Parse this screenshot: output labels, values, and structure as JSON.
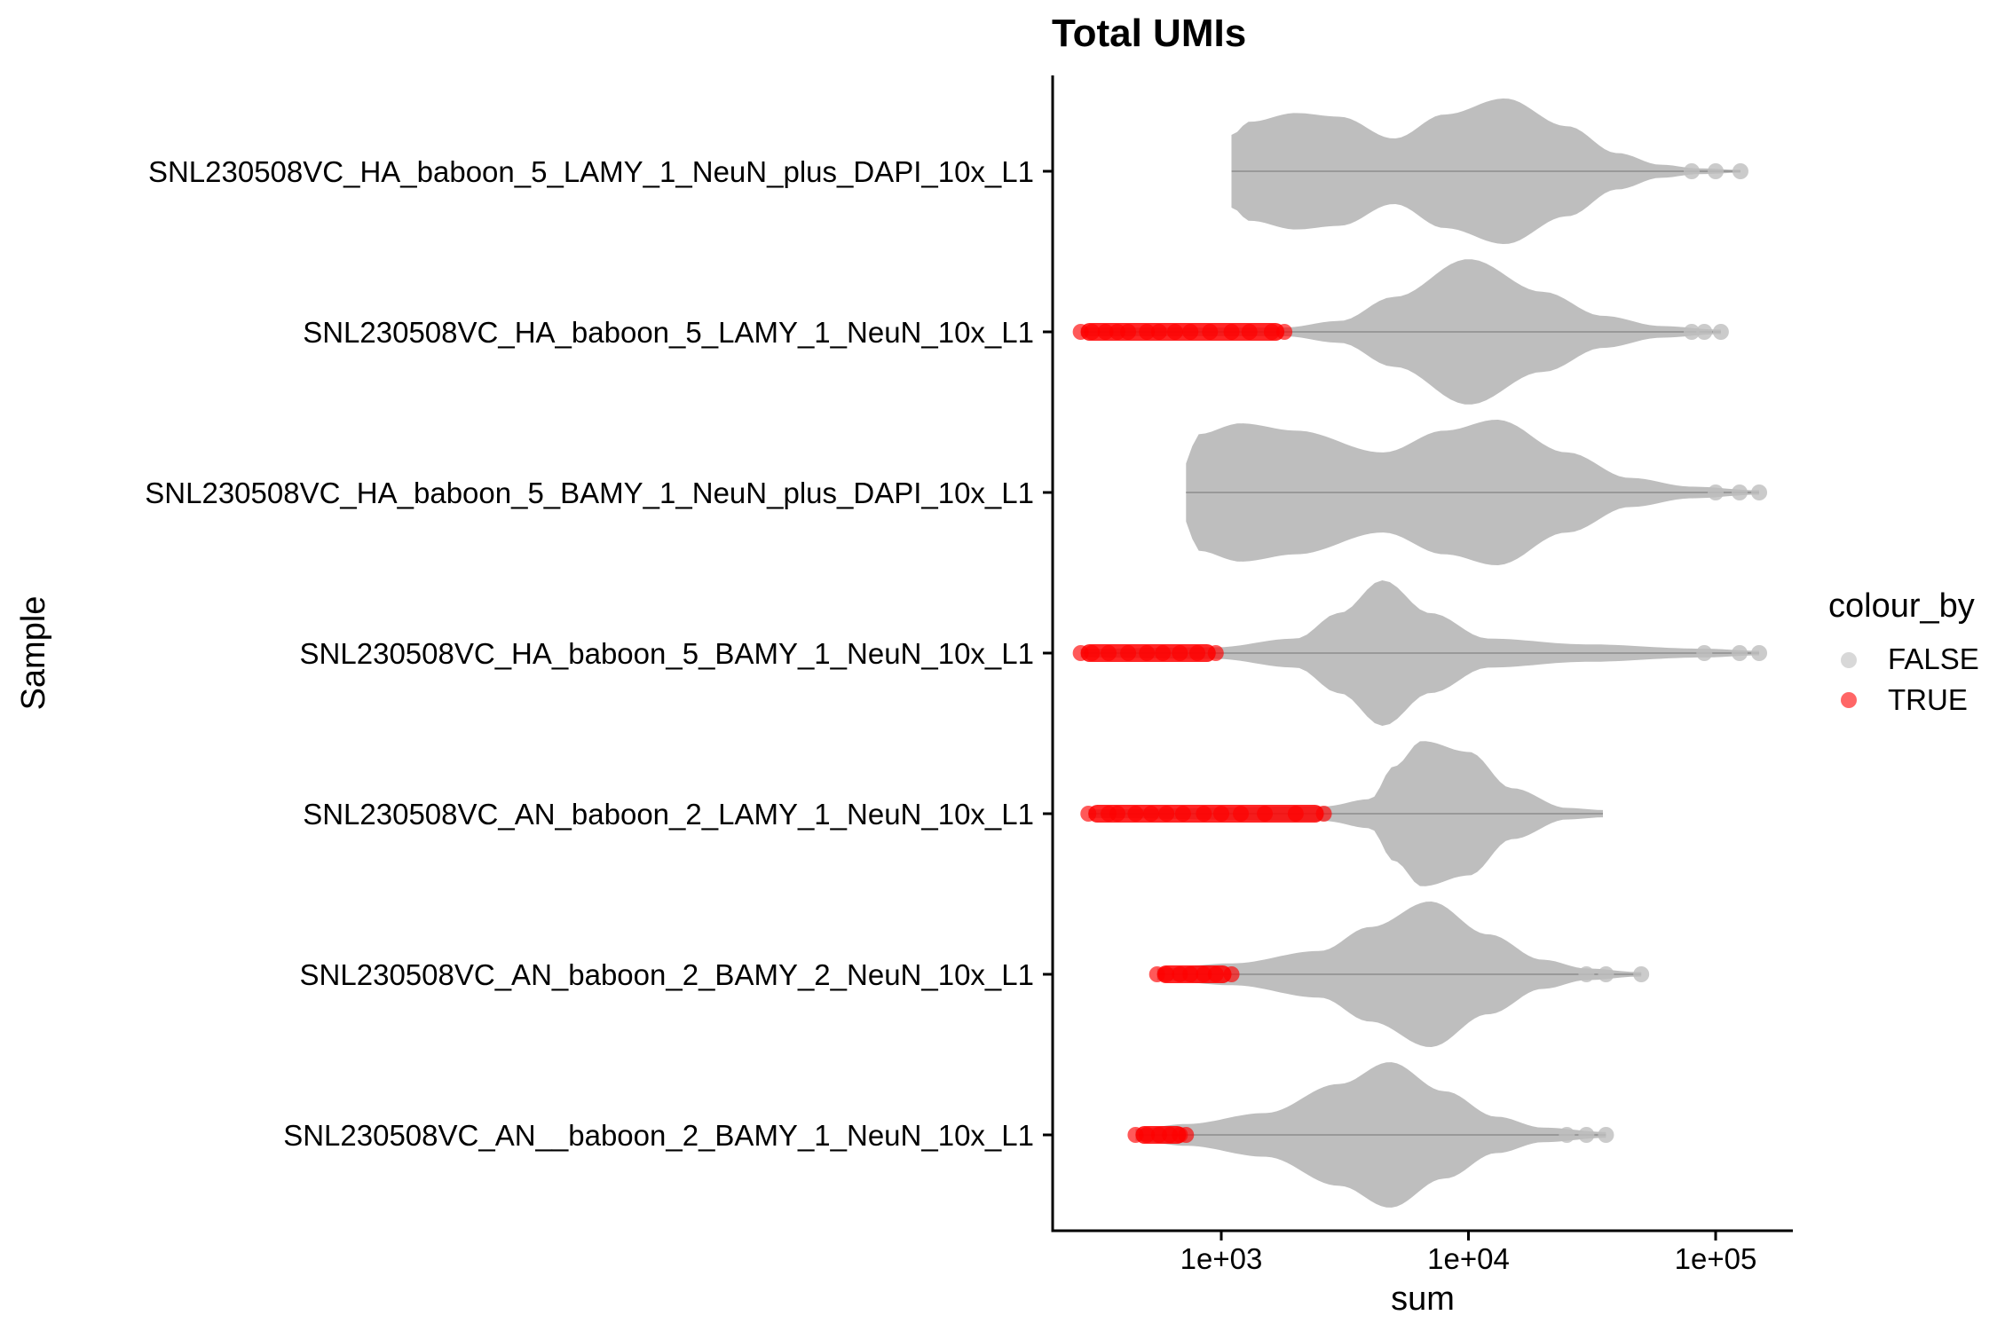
{
  "chart_data": {
    "type": "violin",
    "title": "Total UMIs",
    "xlabel": "sum",
    "ylabel": "Sample",
    "x_scale": "log10",
    "xlim": [
      200,
      200000
    ],
    "x_ticks": [
      1000,
      10000,
      100000
    ],
    "x_tick_labels": [
      "1e+03",
      "1e+04",
      "1e+05"
    ],
    "grid": false,
    "legend": {
      "title": "colour_by",
      "position": "right",
      "entries": [
        {
          "label": "FALSE",
          "color": "#bebebe"
        },
        {
          "label": "TRUE",
          "color": "#ff0000"
        }
      ]
    },
    "series": [
      {
        "sample": "SNL230508VC_HA_baboon_5_LAMY_1_NeuN_plus_DAPI_10x_L1",
        "min": 1100,
        "max": 126000,
        "outliers": [
          80000,
          100000,
          126000
        ],
        "true_min": null,
        "true_max": null,
        "true_points": [],
        "density": [
          [
            1100,
            0.5
          ],
          [
            1300,
            0.68
          ],
          [
            2000,
            0.8
          ],
          [
            3000,
            0.75
          ],
          [
            5000,
            0.45
          ],
          [
            8000,
            0.78
          ],
          [
            14000,
            1.0
          ],
          [
            25000,
            0.62
          ],
          [
            40000,
            0.25
          ],
          [
            60000,
            0.09
          ],
          [
            85000,
            0.04
          ],
          [
            126000,
            0.02
          ]
        ]
      },
      {
        "sample": "SNL230508VC_HA_baboon_5_LAMY_1_NeuN_10x_L1",
        "min": 270,
        "max": 105000,
        "outliers": [
          80000,
          90000,
          105000
        ],
        "true_min": 270,
        "true_max": 1800,
        "true_points": [
          270,
          300,
          340,
          380,
          420,
          500,
          560,
          650,
          750,
          900,
          1100,
          1300,
          1600,
          1800
        ],
        "density": [
          [
            270,
            0.06
          ],
          [
            1800,
            0.06
          ],
          [
            3000,
            0.15
          ],
          [
            5000,
            0.48
          ],
          [
            10000,
            1.0
          ],
          [
            20000,
            0.55
          ],
          [
            35000,
            0.22
          ],
          [
            60000,
            0.08
          ],
          [
            105000,
            0.03
          ]
        ]
      },
      {
        "sample": "SNL230508VC_HA_baboon_5_BAMY_1_NeuN_plus_DAPI_10x_L1",
        "min": 720,
        "max": 150000,
        "outliers": [
          100000,
          125000,
          150000
        ],
        "true_min": null,
        "true_max": null,
        "true_points": [],
        "density": [
          [
            720,
            0.4
          ],
          [
            800,
            0.8
          ],
          [
            1200,
            0.95
          ],
          [
            2000,
            0.85
          ],
          [
            4500,
            0.55
          ],
          [
            8000,
            0.85
          ],
          [
            13000,
            1.0
          ],
          [
            25000,
            0.55
          ],
          [
            45000,
            0.2
          ],
          [
            80000,
            0.08
          ],
          [
            150000,
            0.03
          ]
        ]
      },
      {
        "sample": "SNL230508VC_HA_baboon_5_BAMY_1_NeuN_10x_L1",
        "min": 270,
        "max": 150000,
        "outliers": [
          90000,
          125000,
          150000
        ],
        "true_min": 270,
        "true_max": 950,
        "true_points": [
          270,
          300,
          350,
          420,
          500,
          580,
          680,
          800,
          950
        ],
        "density": [
          [
            270,
            0.06
          ],
          [
            950,
            0.08
          ],
          [
            2000,
            0.2
          ],
          [
            3000,
            0.55
          ],
          [
            4500,
            1.0
          ],
          [
            7000,
            0.55
          ],
          [
            12000,
            0.2
          ],
          [
            30000,
            0.12
          ],
          [
            90000,
            0.06
          ],
          [
            150000,
            0.03
          ]
        ]
      },
      {
        "sample": "SNL230508VC_AN_baboon_2_LAMY_1_NeuN_10x_L1",
        "min": 290,
        "max": 35000,
        "outliers": [],
        "true_min": 290,
        "true_max": 2600,
        "true_points": [
          290,
          350,
          380,
          450,
          520,
          600,
          700,
          850,
          1000,
          1200,
          1500,
          2000,
          2600
        ],
        "density": [
          [
            290,
            0.06
          ],
          [
            2600,
            0.1
          ],
          [
            4000,
            0.2
          ],
          [
            5000,
            0.65
          ],
          [
            6500,
            1.0
          ],
          [
            10000,
            0.85
          ],
          [
            15000,
            0.35
          ],
          [
            25000,
            0.08
          ],
          [
            35000,
            0.05
          ]
        ]
      },
      {
        "sample": "SNL230508VC_AN_baboon_2_BAMY_2_NeuN_10x_L1",
        "min": 550,
        "max": 50000,
        "outliers": [
          30000,
          36000,
          50000
        ],
        "true_min": 550,
        "true_max": 1100,
        "true_points": [
          550,
          600,
          680,
          750,
          850,
          950,
          1100
        ],
        "density": [
          [
            550,
            0.08
          ],
          [
            1100,
            0.15
          ],
          [
            2500,
            0.32
          ],
          [
            4000,
            0.65
          ],
          [
            7000,
            1.0
          ],
          [
            12000,
            0.55
          ],
          [
            20000,
            0.2
          ],
          [
            30000,
            0.08
          ],
          [
            50000,
            0.03
          ]
        ]
      },
      {
        "sample": "SNL230508VC_AN__baboon_2_BAMY_1_NeuN_10x_L1",
        "min": 450,
        "max": 36000,
        "outliers": [
          25000,
          30000,
          36000
        ],
        "true_min": 450,
        "true_max": 720,
        "true_points": [
          450,
          500,
          560,
          620,
          680,
          720
        ],
        "density": [
          [
            450,
            0.08
          ],
          [
            720,
            0.15
          ],
          [
            1500,
            0.3
          ],
          [
            3000,
            0.7
          ],
          [
            4800,
            1.0
          ],
          [
            8000,
            0.6
          ],
          [
            13000,
            0.25
          ],
          [
            20000,
            0.1
          ],
          [
            36000,
            0.04
          ]
        ]
      }
    ]
  }
}
